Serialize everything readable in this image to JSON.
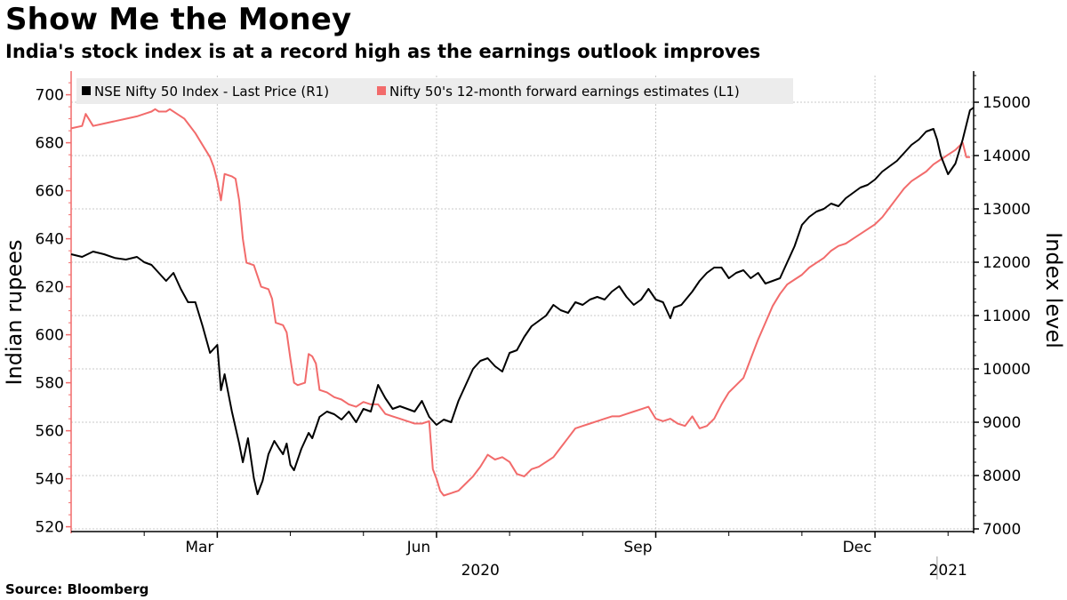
{
  "title": "Show Me the Money",
  "subtitle": "India's stock index is at a record high as the earnings outlook improves",
  "source": "Source: Bloomberg",
  "colors": {
    "nifty": "#000000",
    "earnings": "#f26b6b",
    "grid": "#c8c8c8",
    "legend_bg": "#ececec"
  },
  "chart_data": {
    "type": "line",
    "title": "Show Me the Money",
    "subtitle": "India's stock index is at a record high as the earnings outlook improves",
    "x_range": [
      0,
      12.35
    ],
    "x_unit": "months since 2020-01-01",
    "x_ticks": [
      {
        "label": "Mar",
        "pos": 2.0
      },
      {
        "label": "Jun",
        "pos": 5.0
      },
      {
        "label": "Sep",
        "pos": 8.0
      },
      {
        "label": "Dec",
        "pos": 11.0
      }
    ],
    "x_minor": [
      1.0,
      2.0,
      3.0,
      4.0,
      5.0,
      6.0,
      7.0,
      8.0,
      9.0,
      10.0,
      11.0,
      12.0
    ],
    "year_labels": [
      {
        "label": "2020",
        "pos": 5.6
      },
      {
        "label": "2021",
        "pos": 12.0
      }
    ],
    "year_divider": 11.85,
    "y_left": {
      "label": "Indian rupees",
      "range": [
        518,
        708
      ],
      "ticks": [
        520,
        540,
        560,
        580,
        600,
        620,
        640,
        660,
        680,
        700
      ]
    },
    "y_right": {
      "label": "Index level",
      "range": [
        6950,
        15500
      ],
      "ticks": [
        7000,
        8000,
        9000,
        10000,
        11000,
        12000,
        13000,
        14000,
        15000
      ]
    },
    "legend": [
      "NSE Nifty 50 Index - Last Price (R1)",
      "Nifty 50's 12-month forward earnings estimates (L1)"
    ],
    "series": [
      {
        "name": "NSE Nifty 50 Index - Last Price (R1)",
        "axis": "right",
        "color": "#000000",
        "points": [
          [
            0.0,
            12150
          ],
          [
            0.15,
            12100
          ],
          [
            0.3,
            12200
          ],
          [
            0.45,
            12150
          ],
          [
            0.6,
            12080
          ],
          [
            0.75,
            12050
          ],
          [
            0.9,
            12100
          ],
          [
            1.0,
            12000
          ],
          [
            1.1,
            11950
          ],
          [
            1.2,
            11800
          ],
          [
            1.3,
            11650
          ],
          [
            1.4,
            11800
          ],
          [
            1.5,
            11500
          ],
          [
            1.6,
            11250
          ],
          [
            1.7,
            11250
          ],
          [
            1.8,
            10800
          ],
          [
            1.9,
            10300
          ],
          [
            2.0,
            10450
          ],
          [
            2.05,
            9600
          ],
          [
            2.1,
            9900
          ],
          [
            2.2,
            9200
          ],
          [
            2.3,
            8600
          ],
          [
            2.35,
            8250
          ],
          [
            2.42,
            8700
          ],
          [
            2.5,
            7950
          ],
          [
            2.55,
            7650
          ],
          [
            2.62,
            7900
          ],
          [
            2.7,
            8400
          ],
          [
            2.78,
            8650
          ],
          [
            2.85,
            8500
          ],
          [
            2.9,
            8400
          ],
          [
            2.95,
            8600
          ],
          [
            3.0,
            8200
          ],
          [
            3.05,
            8100
          ],
          [
            3.15,
            8500
          ],
          [
            3.25,
            8800
          ],
          [
            3.3,
            8700
          ],
          [
            3.4,
            9100
          ],
          [
            3.5,
            9200
          ],
          [
            3.6,
            9150
          ],
          [
            3.7,
            9050
          ],
          [
            3.8,
            9200
          ],
          [
            3.9,
            9000
          ],
          [
            4.0,
            9250
          ],
          [
            4.1,
            9200
          ],
          [
            4.2,
            9700
          ],
          [
            4.3,
            9450
          ],
          [
            4.4,
            9250
          ],
          [
            4.5,
            9300
          ],
          [
            4.6,
            9250
          ],
          [
            4.7,
            9200
          ],
          [
            4.8,
            9400
          ],
          [
            4.9,
            9100
          ],
          [
            5.0,
            8950
          ],
          [
            5.1,
            9050
          ],
          [
            5.2,
            9000
          ],
          [
            5.3,
            9400
          ],
          [
            5.4,
            9700
          ],
          [
            5.5,
            10000
          ],
          [
            5.6,
            10150
          ],
          [
            5.7,
            10200
          ],
          [
            5.8,
            10050
          ],
          [
            5.9,
            9950
          ],
          [
            6.0,
            10300
          ],
          [
            6.1,
            10350
          ],
          [
            6.2,
            10600
          ],
          [
            6.3,
            10800
          ],
          [
            6.4,
            10900
          ],
          [
            6.5,
            11000
          ],
          [
            6.6,
            11200
          ],
          [
            6.7,
            11100
          ],
          [
            6.8,
            11050
          ],
          [
            6.9,
            11250
          ],
          [
            7.0,
            11200
          ],
          [
            7.1,
            11300
          ],
          [
            7.2,
            11350
          ],
          [
            7.3,
            11300
          ],
          [
            7.4,
            11450
          ],
          [
            7.5,
            11550
          ],
          [
            7.6,
            11350
          ],
          [
            7.7,
            11200
          ],
          [
            7.8,
            11300
          ],
          [
            7.9,
            11500
          ],
          [
            8.0,
            11300
          ],
          [
            8.1,
            11250
          ],
          [
            8.2,
            10950
          ],
          [
            8.25,
            11150
          ],
          [
            8.35,
            11200
          ],
          [
            8.5,
            11450
          ],
          [
            8.6,
            11650
          ],
          [
            8.7,
            11800
          ],
          [
            8.8,
            11900
          ],
          [
            8.9,
            11900
          ],
          [
            9.0,
            11700
          ],
          [
            9.1,
            11800
          ],
          [
            9.2,
            11850
          ],
          [
            9.3,
            11700
          ],
          [
            9.4,
            11800
          ],
          [
            9.5,
            11600
          ],
          [
            9.6,
            11650
          ],
          [
            9.7,
            11700
          ],
          [
            9.8,
            12000
          ],
          [
            9.9,
            12300
          ],
          [
            10.0,
            12700
          ],
          [
            10.1,
            12850
          ],
          [
            10.2,
            12950
          ],
          [
            10.3,
            13000
          ],
          [
            10.4,
            13100
          ],
          [
            10.5,
            13050
          ],
          [
            10.6,
            13200
          ],
          [
            10.7,
            13300
          ],
          [
            10.8,
            13400
          ],
          [
            10.9,
            13450
          ],
          [
            11.0,
            13550
          ],
          [
            11.1,
            13700
          ],
          [
            11.2,
            13800
          ],
          [
            11.3,
            13900
          ],
          [
            11.4,
            14050
          ],
          [
            11.5,
            14200
          ],
          [
            11.6,
            14300
          ],
          [
            11.7,
            14450
          ],
          [
            11.8,
            14500
          ],
          [
            11.85,
            14300
          ],
          [
            11.9,
            14000
          ],
          [
            12.0,
            13650
          ],
          [
            12.1,
            13850
          ],
          [
            12.2,
            14300
          ],
          [
            12.3,
            14850
          ],
          [
            12.35,
            14900
          ]
        ]
      },
      {
        "name": "Nifty 50's 12-month forward earnings estimates (L1)",
        "axis": "left",
        "color": "#f26b6b",
        "points": [
          [
            0.0,
            686
          ],
          [
            0.15,
            687
          ],
          [
            0.2,
            692
          ],
          [
            0.3,
            687
          ],
          [
            0.45,
            688
          ],
          [
            0.6,
            689
          ],
          [
            0.75,
            690
          ],
          [
            0.9,
            691
          ],
          [
            1.0,
            692
          ],
          [
            1.1,
            693
          ],
          [
            1.15,
            694
          ],
          [
            1.2,
            693
          ],
          [
            1.3,
            693
          ],
          [
            1.35,
            694
          ],
          [
            1.45,
            692
          ],
          [
            1.55,
            690
          ],
          [
            1.6,
            688
          ],
          [
            1.7,
            684
          ],
          [
            1.8,
            679
          ],
          [
            1.9,
            674
          ],
          [
            1.95,
            670
          ],
          [
            2.0,
            664
          ],
          [
            2.05,
            656
          ],
          [
            2.1,
            667
          ],
          [
            2.2,
            666
          ],
          [
            2.25,
            665
          ],
          [
            2.3,
            656
          ],
          [
            2.35,
            640
          ],
          [
            2.4,
            630
          ],
          [
            2.5,
            629
          ],
          [
            2.6,
            620
          ],
          [
            2.7,
            619
          ],
          [
            2.75,
            615
          ],
          [
            2.8,
            605
          ],
          [
            2.9,
            604
          ],
          [
            2.95,
            601
          ],
          [
            3.0,
            590
          ],
          [
            3.05,
            580
          ],
          [
            3.1,
            579
          ],
          [
            3.2,
            580
          ],
          [
            3.25,
            592
          ],
          [
            3.3,
            591
          ],
          [
            3.35,
            588
          ],
          [
            3.4,
            577
          ],
          [
            3.5,
            576
          ],
          [
            3.6,
            574
          ],
          [
            3.7,
            573
          ],
          [
            3.8,
            571
          ],
          [
            3.9,
            570
          ],
          [
            4.0,
            572
          ],
          [
            4.1,
            571
          ],
          [
            4.2,
            571
          ],
          [
            4.3,
            567
          ],
          [
            4.4,
            566
          ],
          [
            4.5,
            565
          ],
          [
            4.6,
            564
          ],
          [
            4.7,
            563
          ],
          [
            4.8,
            563
          ],
          [
            4.9,
            564
          ],
          [
            4.95,
            544
          ],
          [
            5.0,
            540
          ],
          [
            5.05,
            535
          ],
          [
            5.1,
            533
          ],
          [
            5.2,
            534
          ],
          [
            5.3,
            535
          ],
          [
            5.4,
            538
          ],
          [
            5.5,
            541
          ],
          [
            5.6,
            545
          ],
          [
            5.7,
            550
          ],
          [
            5.8,
            548
          ],
          [
            5.9,
            549
          ],
          [
            6.0,
            547
          ],
          [
            6.1,
            542
          ],
          [
            6.2,
            541
          ],
          [
            6.3,
            544
          ],
          [
            6.4,
            545
          ],
          [
            6.5,
            547
          ],
          [
            6.6,
            549
          ],
          [
            6.7,
            553
          ],
          [
            6.8,
            557
          ],
          [
            6.9,
            561
          ],
          [
            7.0,
            562
          ],
          [
            7.1,
            563
          ],
          [
            7.2,
            564
          ],
          [
            7.3,
            565
          ],
          [
            7.4,
            566
          ],
          [
            7.5,
            566
          ],
          [
            7.6,
            567
          ],
          [
            7.7,
            568
          ],
          [
            7.8,
            569
          ],
          [
            7.9,
            570
          ],
          [
            8.0,
            565
          ],
          [
            8.1,
            564
          ],
          [
            8.2,
            565
          ],
          [
            8.3,
            563
          ],
          [
            8.4,
            562
          ],
          [
            8.5,
            566
          ],
          [
            8.6,
            561
          ],
          [
            8.7,
            562
          ],
          [
            8.8,
            565
          ],
          [
            8.9,
            571
          ],
          [
            9.0,
            576
          ],
          [
            9.1,
            579
          ],
          [
            9.2,
            582
          ],
          [
            9.3,
            590
          ],
          [
            9.4,
            598
          ],
          [
            9.5,
            605
          ],
          [
            9.6,
            612
          ],
          [
            9.7,
            617
          ],
          [
            9.8,
            621
          ],
          [
            9.9,
            623
          ],
          [
            10.0,
            625
          ],
          [
            10.1,
            628
          ],
          [
            10.2,
            630
          ],
          [
            10.3,
            632
          ],
          [
            10.4,
            635
          ],
          [
            10.5,
            637
          ],
          [
            10.6,
            638
          ],
          [
            10.7,
            640
          ],
          [
            10.8,
            642
          ],
          [
            10.9,
            644
          ],
          [
            11.0,
            646
          ],
          [
            11.1,
            649
          ],
          [
            11.2,
            653
          ],
          [
            11.3,
            657
          ],
          [
            11.4,
            661
          ],
          [
            11.5,
            664
          ],
          [
            11.6,
            666
          ],
          [
            11.7,
            668
          ],
          [
            11.8,
            671
          ],
          [
            11.9,
            673
          ],
          [
            12.0,
            675
          ],
          [
            12.1,
            677
          ],
          [
            12.2,
            680
          ],
          [
            12.25,
            674
          ],
          [
            12.3,
            674
          ]
        ]
      }
    ]
  }
}
